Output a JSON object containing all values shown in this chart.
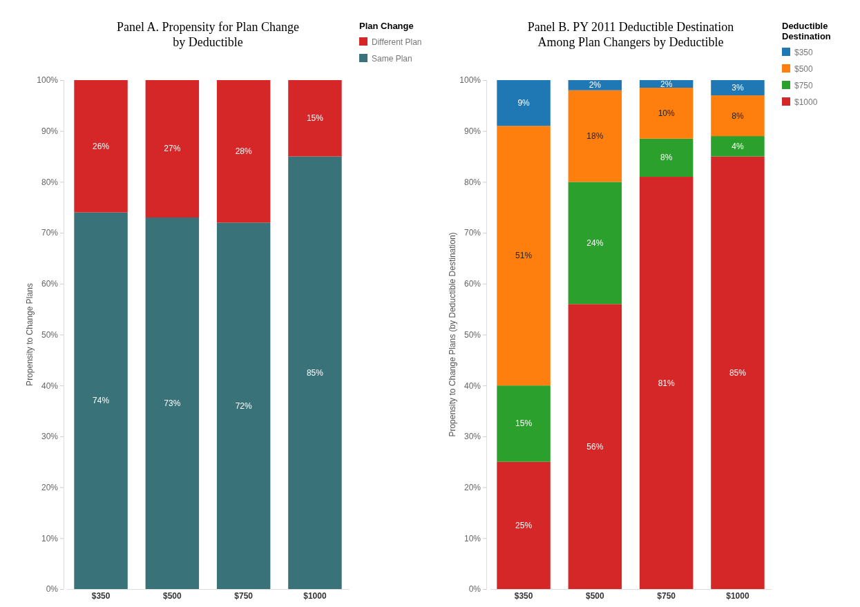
{
  "chart_data": [
    {
      "type": "bar",
      "title": "Panel A. Propensity for Plan Change\nby Deductible",
      "ylabel": "Propensity to Change Plans",
      "legend_title": "Plan Change",
      "legend": "top right",
      "stacked": true,
      "grid": false,
      "categories": [
        "$350",
        "$500",
        "$750",
        "$1000"
      ],
      "ylim": [
        0,
        100
      ],
      "yticks": [
        {
          "value": 0,
          "label": "0%"
        },
        {
          "value": 10,
          "label": "10%"
        },
        {
          "value": 20,
          "label": "20%"
        },
        {
          "value": 30,
          "label": "30%"
        },
        {
          "value": 40,
          "label": "40%"
        },
        {
          "value": 50,
          "label": "50%"
        },
        {
          "value": 60,
          "label": "60%"
        },
        {
          "value": 70,
          "label": "70%"
        },
        {
          "value": 80,
          "label": "80%"
        },
        {
          "value": 90,
          "label": "90%"
        },
        {
          "value": 100,
          "label": "100%"
        }
      ],
      "series": [
        {
          "name": "Same Plan",
          "color": "#3a7279",
          "values": [
            74,
            73,
            72,
            85
          ],
          "value_labels": [
            "74%",
            "73%",
            "72%",
            "85%"
          ]
        },
        {
          "name": "Different Plan",
          "color": "#d62728",
          "values": [
            26,
            27,
            28,
            15
          ],
          "value_labels": [
            "26%",
            "27%",
            "28%",
            "15%"
          ]
        }
      ]
    },
    {
      "type": "bar",
      "title": "Panel B. PY 2011 Deductible Destination\nAmong Plan Changers by Deductible",
      "ylabel": "Propensity to Change Plans (by Deductible Destination)",
      "legend_title": "Deductible\nDestination",
      "legend": "top right",
      "stacked": true,
      "grid": false,
      "categories": [
        "$350",
        "$500",
        "$750",
        "$1000"
      ],
      "ylim": [
        0,
        100
      ],
      "yticks": [
        {
          "value": 0,
          "label": "0%"
        },
        {
          "value": 10,
          "label": "10%"
        },
        {
          "value": 20,
          "label": "20%"
        },
        {
          "value": 30,
          "label": "30%"
        },
        {
          "value": 40,
          "label": "40%"
        },
        {
          "value": 50,
          "label": "50%"
        },
        {
          "value": 60,
          "label": "60%"
        },
        {
          "value": 70,
          "label": "70%"
        },
        {
          "value": 80,
          "label": "80%"
        },
        {
          "value": 90,
          "label": "90%"
        },
        {
          "value": 100,
          "label": "100%"
        }
      ],
      "series": [
        {
          "name": "$1000",
          "color": "#d62728",
          "values": [
            25,
            56,
            81,
            85
          ],
          "value_labels": [
            "25%",
            "56%",
            "81%",
            "85%"
          ]
        },
        {
          "name": "$750",
          "color": "#2ca02c",
          "values": [
            15,
            24,
            7.5,
            4
          ],
          "value_labels": [
            "15%",
            "24%",
            "8%",
            "4%"
          ]
        },
        {
          "name": "$500",
          "color": "#ff7f0e",
          "values": [
            51,
            18,
            10,
            8
          ],
          "value_labels": [
            "51%",
            "18%",
            "10%",
            "8%"
          ]
        },
        {
          "name": "$350",
          "color": "#1f77b4",
          "values": [
            9,
            2,
            1.5,
            3
          ],
          "value_labels": [
            "9%",
            "2%",
            "2%",
            "3%"
          ]
        }
      ]
    }
  ]
}
